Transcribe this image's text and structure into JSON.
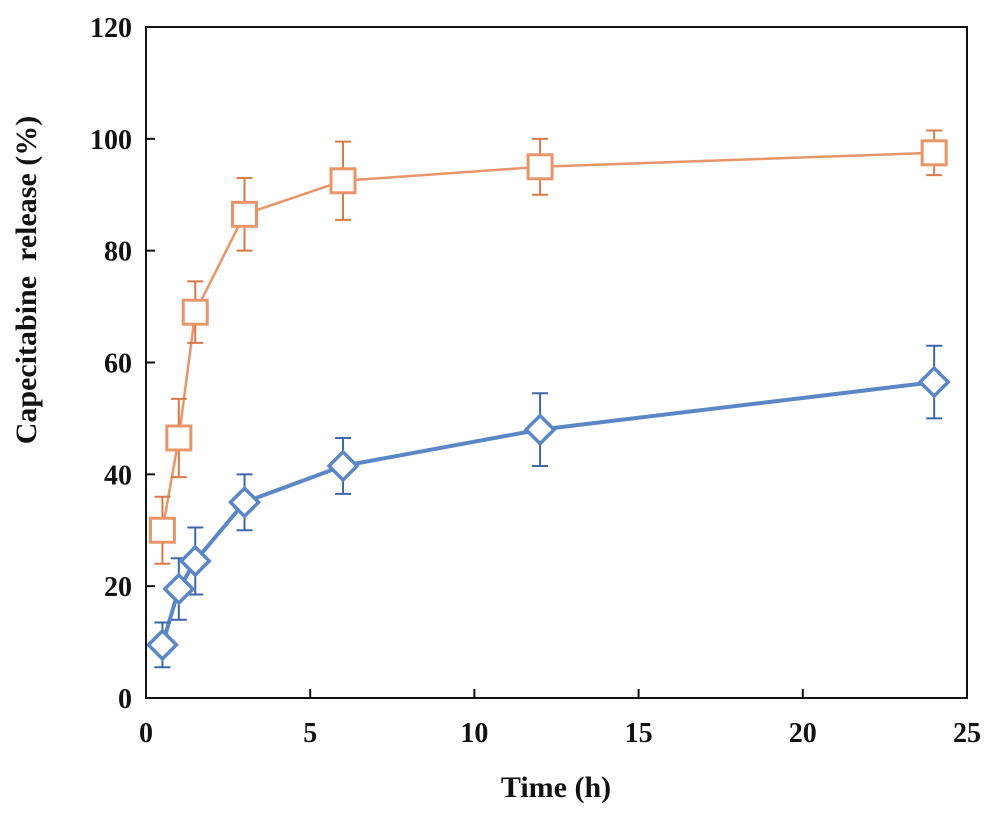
{
  "chart_data": {
    "type": "scatter",
    "title": "",
    "xlabel": "Time (h)",
    "ylabel": "Capecitabine  release (%)",
    "xlim": [
      0,
      25
    ],
    "ylim": [
      0,
      120
    ],
    "xticks": [
      0,
      5,
      10,
      15,
      20,
      25
    ],
    "yticks": [
      0,
      20,
      40,
      60,
      80,
      100,
      120
    ],
    "xtick_labels": [
      "0",
      "5",
      "10",
      "15",
      "20",
      "25"
    ],
    "ytick_labels": [
      "0",
      "20",
      "40",
      "60",
      "80",
      "100",
      "120"
    ],
    "grid": false,
    "legend": "none",
    "series": [
      {
        "marker": "square",
        "color": "#E8956A",
        "x": [
          0.5,
          1,
          1.5,
          3,
          6,
          12,
          24
        ],
        "y": [
          30,
          46.5,
          69,
          86.5,
          92.5,
          95,
          97.5
        ],
        "error": [
          6,
          7,
          5.5,
          6.5,
          7,
          5,
          4
        ]
      },
      {
        "marker": "diamond",
        "color": "#5B87C6",
        "x": [
          0.5,
          1,
          1.5,
          3,
          6,
          12,
          24
        ],
        "y": [
          9.5,
          19.5,
          24.5,
          35,
          41.5,
          48,
          56.5
        ],
        "error": [
          4,
          5.5,
          6,
          5,
          5,
          6.5,
          6.5
        ]
      }
    ]
  }
}
